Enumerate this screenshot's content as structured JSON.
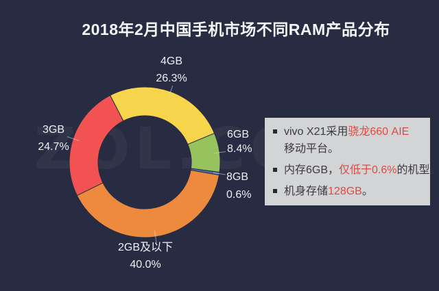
{
  "page": {
    "background_color": "#272c42",
    "watermark": "ZOL.CO"
  },
  "chart_data": {
    "type": "pie",
    "title": "2018年2月中国手机市场不同RAM产品分布",
    "donut": true,
    "legend_position": "none",
    "label_style": "outside-with-leader-lines",
    "start_angle_deg_cw_from_top": -27.3,
    "slices": [
      {
        "label": "4GB",
        "value": 26.3,
        "pct": "26.3%",
        "color": "#f6d44c"
      },
      {
        "label": "6GB",
        "value": 8.4,
        "pct": "8.4%",
        "color": "#97c35f"
      },
      {
        "label": "8GB",
        "value": 0.6,
        "pct": "0.6%",
        "color": "#4a6fa8"
      },
      {
        "label": "2GB及以下",
        "value": 40.0,
        "pct": "40.0%",
        "color": "#ee8a3e"
      },
      {
        "label": "3GB",
        "value": 24.7,
        "pct": "24.7%",
        "color": "#f25352"
      }
    ]
  },
  "info_panel": {
    "background_color": "#d3d4d6",
    "highlight_color": "#df4b41",
    "item1_seg1": "vivo X21采用",
    "item1_seg2": "骁龙660 AIE",
    "item1_line2": "移动平台。",
    "item2_seg1": "内存6GB，",
    "item2_seg2": "仅低于0.6%",
    "item2_seg3": "的机型。",
    "item3_seg1": "机身存储",
    "item3_seg2": "128GB",
    "item3_seg3": "。"
  }
}
